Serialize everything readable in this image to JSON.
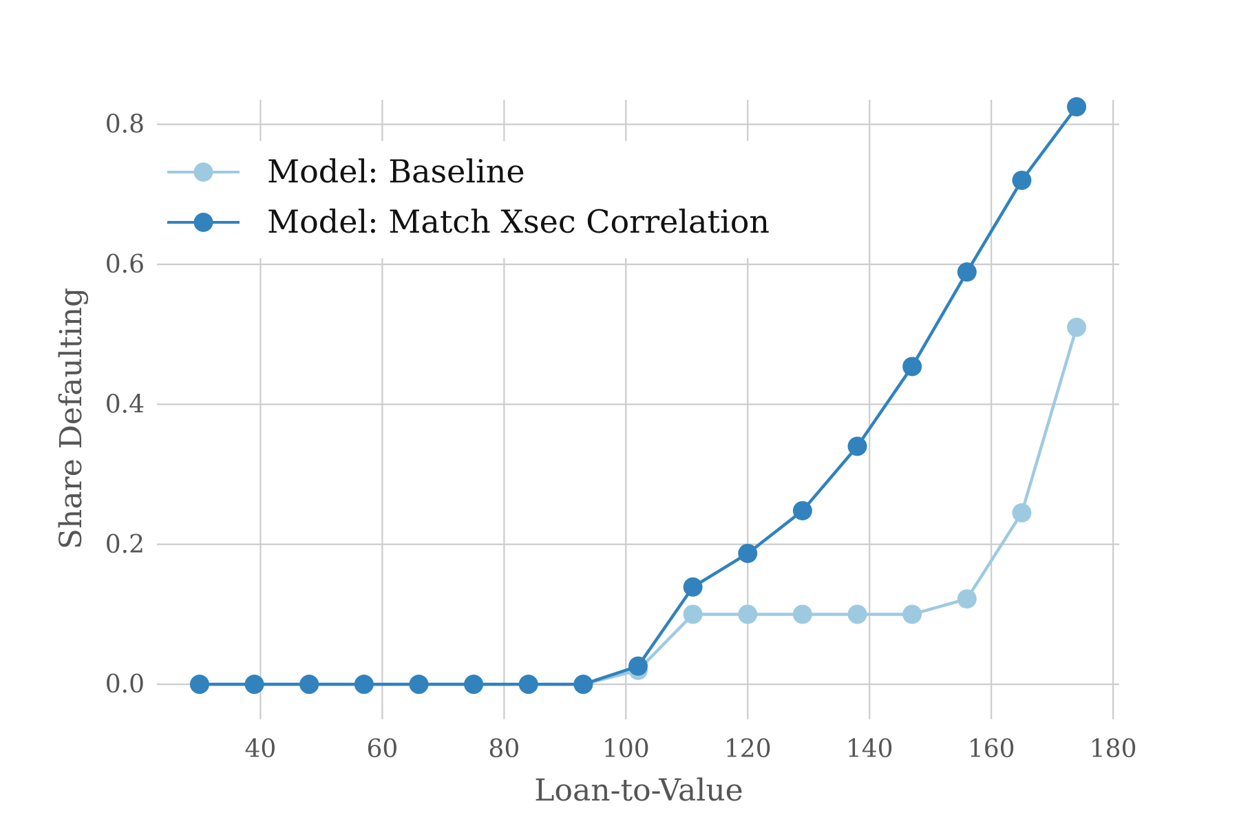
{
  "chart_data": {
    "type": "line",
    "xlabel": "Loan-to-Value",
    "ylabel": "Share Defaulting",
    "xlim": [
      23,
      181
    ],
    "ylim": [
      -0.05,
      0.835
    ],
    "xticks": [
      40,
      60,
      80,
      100,
      120,
      140,
      160,
      180
    ],
    "yticks": [
      0.0,
      0.2,
      0.4,
      0.6,
      0.8
    ],
    "xtick_labels": [
      "40",
      "60",
      "80",
      "100",
      "120",
      "140",
      "160",
      "180"
    ],
    "ytick_labels": [
      "0.0",
      "0.2",
      "0.4",
      "0.6",
      "0.8"
    ],
    "grid": true,
    "legend_position": "top-left",
    "x": [
      30,
      39,
      48,
      57,
      66,
      75,
      84,
      93,
      102,
      111,
      120,
      129,
      138,
      147,
      156,
      165,
      174
    ],
    "series": [
      {
        "name": "Model: Baseline",
        "color": "#9ecae1",
        "values": [
          0,
          0,
          0,
          0,
          0,
          0,
          0,
          0,
          0.02,
          0.1,
          0.1,
          0.1,
          0.1,
          0.1,
          0.122,
          0.245,
          0.51
        ]
      },
      {
        "name": "Model: Match Xsec Correlation",
        "color": "#3182bd",
        "values": [
          0,
          0,
          0,
          0,
          0,
          0,
          0,
          0,
          0.026,
          0.139,
          0.187,
          0.248,
          0.34,
          0.454,
          0.589,
          0.72,
          0.825
        ]
      }
    ]
  }
}
